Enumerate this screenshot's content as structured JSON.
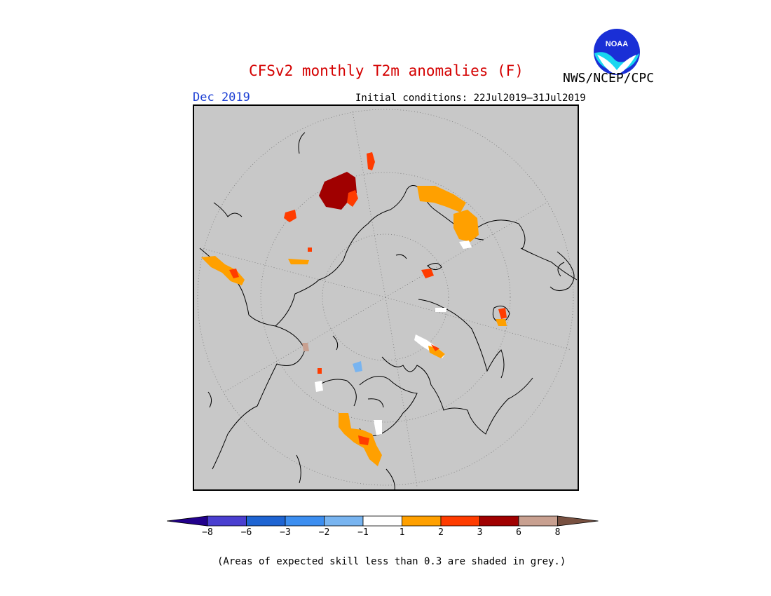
{
  "title": "CFSv2 monthly T2m anomalies (F)",
  "agency": "NWS/NCEP/CPC",
  "logo_text": "NOAA",
  "month": "Dec 2019",
  "initial_conditions": "Initial conditions: 22Jul2019–31Jul2019",
  "skill_note": "(Areas of expected skill less than 0.3 are shaded in grey.)",
  "colors": {
    "title": "#d40000",
    "month": "#1c3fd4",
    "no_skill_grey": "#c8c8c8"
  },
  "legend": {
    "ticks": [
      "−8",
      "−6",
      "−3",
      "−2",
      "−1",
      "1",
      "2",
      "3",
      "6",
      "8"
    ],
    "bins": [
      {
        "range": "< -8",
        "color": "#22008c"
      },
      {
        "range": "-8 to -6",
        "color": "#4a3fd0"
      },
      {
        "range": "-6 to -3",
        "color": "#1e64d2"
      },
      {
        "range": "-3 to -2",
        "color": "#3c8ef0"
      },
      {
        "range": "-2 to -1",
        "color": "#78b4f0"
      },
      {
        "range": "-1 to 1",
        "color": "#ffffff"
      },
      {
        "range": "1 to 2",
        "color": "#ffa000"
      },
      {
        "range": "2 to 3",
        "color": "#ff3c00"
      },
      {
        "range": "3 to 6",
        "color": "#a00000"
      },
      {
        "range": "6 to 8",
        "color": "#c8a090"
      },
      {
        "range": "> 8",
        "color": "#785040"
      }
    ]
  }
}
